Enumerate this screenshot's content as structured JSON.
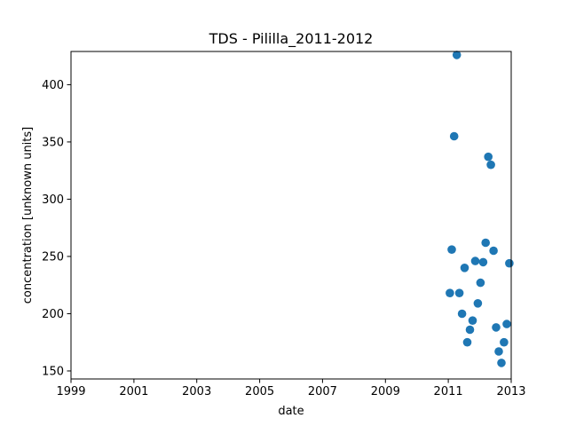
{
  "chart_data": {
    "type": "scatter",
    "title": "TDS - Pililla_2011-2012",
    "xlabel": "date",
    "ylabel": "concentration [unknown units]",
    "xlim": [
      "1999-01-01",
      "2013-01-01"
    ],
    "ylim": [
      143,
      429
    ],
    "x_ticks": [
      "1999",
      "2001",
      "2003",
      "2005",
      "2007",
      "2009",
      "2011",
      "2013"
    ],
    "y_ticks": [
      150,
      200,
      250,
      300,
      350,
      400
    ],
    "grid": false,
    "legend": "none",
    "marker_color": "#1f77b4",
    "points": [
      {
        "x": "2011-01-20",
        "y": 218
      },
      {
        "x": "2011-02-10",
        "y": 256
      },
      {
        "x": "2011-03-10",
        "y": 355
      },
      {
        "x": "2011-04-10",
        "y": 426
      },
      {
        "x": "2011-05-10",
        "y": 218
      },
      {
        "x": "2011-06-10",
        "y": 200
      },
      {
        "x": "2011-07-10",
        "y": 240
      },
      {
        "x": "2011-08-10",
        "y": 175
      },
      {
        "x": "2011-09-10",
        "y": 186
      },
      {
        "x": "2011-10-10",
        "y": 194
      },
      {
        "x": "2011-11-10",
        "y": 246
      },
      {
        "x": "2011-12-10",
        "y": 209
      },
      {
        "x": "2012-01-10",
        "y": 227
      },
      {
        "x": "2012-02-10",
        "y": 245
      },
      {
        "x": "2012-03-10",
        "y": 262
      },
      {
        "x": "2012-04-10",
        "y": 337
      },
      {
        "x": "2012-05-10",
        "y": 330
      },
      {
        "x": "2012-06-10",
        "y": 255
      },
      {
        "x": "2012-07-10",
        "y": 188
      },
      {
        "x": "2012-08-10",
        "y": 167
      },
      {
        "x": "2012-09-10",
        "y": 157
      },
      {
        "x": "2012-10-10",
        "y": 175
      },
      {
        "x": "2012-11-10",
        "y": 191
      },
      {
        "x": "2012-12-10",
        "y": 244
      }
    ]
  }
}
